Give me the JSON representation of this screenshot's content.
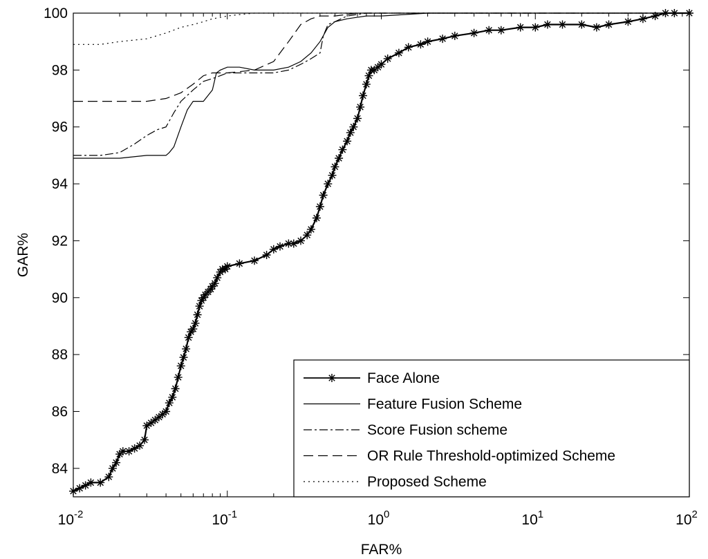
{
  "chart_data": {
    "type": "line",
    "title": "",
    "xlabel": "FAR%",
    "ylabel": "GAR%",
    "x_scale": "log",
    "xlim": [
      0.01,
      100
    ],
    "ylim": [
      83,
      100
    ],
    "x_ticks": [
      {
        "value": 0.01,
        "base": "10",
        "exp": "-2"
      },
      {
        "value": 0.1,
        "base": "10",
        "exp": "-1"
      },
      {
        "value": 1,
        "base": "10",
        "exp": "0"
      },
      {
        "value": 10,
        "base": "10",
        "exp": "1"
      },
      {
        "value": 100,
        "base": "10",
        "exp": "2"
      }
    ],
    "y_ticks": [
      84,
      86,
      88,
      90,
      92,
      94,
      96,
      98,
      100
    ],
    "grid": false,
    "legend_position": "bottom-right",
    "series": [
      {
        "name": "Face Alone",
        "style": "solid-star",
        "x": [
          0.01,
          0.011,
          0.012,
          0.013,
          0.015,
          0.017,
          0.018,
          0.019,
          0.02,
          0.021,
          0.023,
          0.025,
          0.027,
          0.029,
          0.03,
          0.032,
          0.034,
          0.036,
          0.038,
          0.04,
          0.042,
          0.044,
          0.046,
          0.048,
          0.05,
          0.052,
          0.054,
          0.056,
          0.058,
          0.06,
          0.062,
          0.064,
          0.066,
          0.068,
          0.07,
          0.072,
          0.075,
          0.078,
          0.08,
          0.083,
          0.086,
          0.09,
          0.093,
          0.097,
          0.1,
          0.12,
          0.15,
          0.18,
          0.2,
          0.22,
          0.25,
          0.27,
          0.3,
          0.33,
          0.35,
          0.38,
          0.4,
          0.42,
          0.45,
          0.48,
          0.5,
          0.53,
          0.56,
          0.6,
          0.63,
          0.66,
          0.7,
          0.73,
          0.76,
          0.8,
          0.83,
          0.86,
          0.9,
          0.95,
          1.0,
          1.1,
          1.3,
          1.5,
          1.8,
          2.0,
          2.5,
          3.0,
          4.0,
          5.0,
          6.0,
          8.0,
          10.0,
          12.0,
          15.0,
          20.0,
          25.0,
          30.0,
          40.0,
          50.0,
          60.0,
          70.0,
          80.0,
          100.0
        ],
        "y": [
          83.2,
          83.3,
          83.4,
          83.5,
          83.5,
          83.7,
          84.0,
          84.2,
          84.5,
          84.6,
          84.6,
          84.7,
          84.8,
          85.0,
          85.5,
          85.6,
          85.7,
          85.8,
          85.9,
          86.0,
          86.3,
          86.5,
          86.8,
          87.2,
          87.6,
          87.9,
          88.2,
          88.6,
          88.8,
          88.9,
          89.1,
          89.4,
          89.7,
          89.9,
          90.0,
          90.1,
          90.2,
          90.3,
          90.4,
          90.5,
          90.7,
          90.9,
          91.0,
          91.0,
          91.1,
          91.2,
          91.3,
          91.5,
          91.7,
          91.8,
          91.9,
          91.9,
          92.0,
          92.2,
          92.4,
          92.8,
          93.2,
          93.6,
          94.0,
          94.3,
          94.6,
          94.9,
          95.2,
          95.5,
          95.8,
          96.0,
          96.3,
          96.7,
          97.1,
          97.5,
          97.8,
          98.0,
          98.0,
          98.1,
          98.2,
          98.4,
          98.6,
          98.8,
          98.9,
          99.0,
          99.1,
          99.2,
          99.3,
          99.4,
          99.4,
          99.5,
          99.5,
          99.6,
          99.6,
          99.6,
          99.5,
          99.6,
          99.7,
          99.8,
          99.9,
          100.0,
          100.0,
          100.0
        ]
      },
      {
        "name": "Feature Fusion Scheme",
        "style": "solid",
        "x": [
          0.01,
          0.02,
          0.03,
          0.04,
          0.042,
          0.045,
          0.05,
          0.055,
          0.06,
          0.07,
          0.08,
          0.085,
          0.09,
          0.1,
          0.12,
          0.15,
          0.2,
          0.25,
          0.3,
          0.35,
          0.4,
          0.45,
          0.5,
          0.6,
          0.8,
          1.0,
          2.0,
          5.0,
          10.0,
          100.0
        ],
        "y": [
          94.9,
          94.9,
          95.0,
          95.0,
          95.1,
          95.3,
          96.0,
          96.6,
          96.9,
          96.9,
          97.3,
          97.9,
          98.0,
          98.1,
          98.1,
          98.0,
          98.0,
          98.1,
          98.3,
          98.6,
          99.0,
          99.5,
          99.7,
          99.8,
          99.9,
          99.9,
          100.0,
          100.0,
          100.0,
          100.0
        ]
      },
      {
        "name": "Score Fusion scheme",
        "style": "dashdot",
        "x": [
          0.01,
          0.015,
          0.02,
          0.025,
          0.03,
          0.035,
          0.04,
          0.045,
          0.05,
          0.06,
          0.07,
          0.08,
          0.09,
          0.1,
          0.15,
          0.2,
          0.25,
          0.3,
          0.35,
          0.4,
          0.42,
          0.45,
          0.5,
          0.6,
          0.8,
          1.0,
          2.0,
          100.0
        ],
        "y": [
          95.0,
          95.0,
          95.1,
          95.4,
          95.7,
          95.9,
          96.0,
          96.5,
          96.9,
          97.3,
          97.6,
          97.7,
          97.8,
          97.9,
          97.9,
          97.9,
          98.0,
          98.2,
          98.4,
          98.6,
          99.2,
          99.6,
          99.7,
          99.9,
          100.0,
          100.0,
          100.0,
          100.0
        ]
      },
      {
        "name": "OR Rule Threshold-optimized Scheme",
        "style": "dashed",
        "x": [
          0.01,
          0.02,
          0.03,
          0.04,
          0.05,
          0.06,
          0.07,
          0.08,
          0.1,
          0.15,
          0.2,
          0.22,
          0.25,
          0.3,
          0.35,
          0.4,
          0.5,
          0.7,
          1.0,
          2.0,
          100.0
        ],
        "y": [
          96.9,
          96.9,
          96.9,
          97.0,
          97.2,
          97.5,
          97.8,
          97.9,
          97.9,
          98.0,
          98.3,
          98.6,
          99.0,
          99.6,
          99.8,
          99.9,
          99.9,
          100.0,
          100.0,
          100.0,
          100.0
        ]
      },
      {
        "name": "Proposed Scheme",
        "style": "dotted",
        "x": [
          0.01,
          0.015,
          0.02,
          0.03,
          0.04,
          0.05,
          0.06,
          0.07,
          0.08,
          0.09,
          0.1,
          0.12,
          0.15,
          0.2,
          0.3,
          0.5,
          1.0,
          100.0
        ],
        "y": [
          98.9,
          98.9,
          99.0,
          99.1,
          99.3,
          99.5,
          99.6,
          99.7,
          99.8,
          99.85,
          99.9,
          99.95,
          100.0,
          100.0,
          100.0,
          100.0,
          100.0,
          100.0
        ]
      }
    ]
  }
}
